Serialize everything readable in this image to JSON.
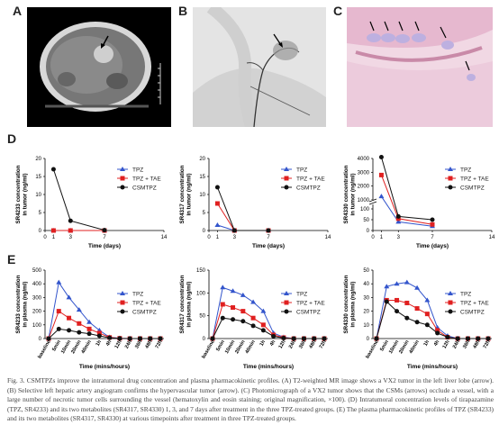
{
  "panels": {
    "A": "A",
    "B": "B",
    "C": "C",
    "D": "D",
    "E": "E"
  },
  "legend": {
    "d": [
      "TPZ",
      "TPZ + TAE",
      "CSMTPZ"
    ],
    "e": [
      "TPZ",
      "TPZ + TAE",
      "CSMTPZ"
    ]
  },
  "colors": {
    "tpz": "#3355cc",
    "tpz_tae": "#e02020",
    "csmtpz": "#111111"
  },
  "chart_data": [
    {
      "id": "D1",
      "type": "line",
      "ylabel": "SR4233 concentration in tumor (ng/ml)",
      "xlabel": "Time (days)",
      "x": [
        1,
        3,
        7
      ],
      "xticks": [
        0,
        1,
        3,
        7,
        14
      ],
      "ylim": [
        0,
        20
      ],
      "yticks": [
        0,
        5,
        10,
        15,
        20
      ],
      "series": [
        {
          "name": "TPZ",
          "values": [
            0,
            0,
            0
          ]
        },
        {
          "name": "TPZ + TAE",
          "values": [
            0,
            0,
            0
          ]
        },
        {
          "name": "CSMTPZ",
          "values": [
            17,
            2.7,
            0.1
          ]
        }
      ]
    },
    {
      "id": "D2",
      "type": "line",
      "ylabel": "SR4317 concentration in tumor (ng/ml)",
      "xlabel": "Time (days)",
      "x": [
        1,
        3,
        7
      ],
      "xticks": [
        0,
        1,
        3,
        7,
        14
      ],
      "ylim": [
        0,
        20
      ],
      "yticks": [
        0,
        5,
        10,
        15,
        20
      ],
      "series": [
        {
          "name": "TPZ",
          "values": [
            1.5,
            0,
            0
          ]
        },
        {
          "name": "TPZ + TAE",
          "values": [
            7.5,
            0,
            0
          ]
        },
        {
          "name": "CSMTPZ",
          "values": [
            12,
            0,
            0
          ]
        }
      ]
    },
    {
      "id": "D3",
      "type": "line",
      "ylabel": "SR4330 concentration in tumor (ng/ml)",
      "xlabel": "Time (days)",
      "x": [
        1,
        3,
        7
      ],
      "xticks": [
        0,
        1,
        3,
        7,
        14
      ],
      "yticks_upper": [
        1000,
        2000,
        3000,
        4000
      ],
      "yticks_lower": [
        0,
        50,
        100
      ],
      "series": [
        {
          "name": "TPZ",
          "values": [
            1250,
            40,
            20
          ]
        },
        {
          "name": "TPZ + TAE",
          "values": [
            2800,
            55,
            28
          ]
        },
        {
          "name": "CSMTPZ",
          "values": [
            4100,
            65,
            50
          ]
        }
      ]
    },
    {
      "id": "E1",
      "type": "line",
      "ylabel": "SR4233 concentration in plasma (ng/ml)",
      "xlabel": "Time (mins/hours)",
      "categories": [
        "baseline",
        "5min",
        "10min",
        "20min",
        "40min",
        "1h",
        "4h",
        "12h",
        "24h",
        "36h",
        "48h",
        "72h"
      ],
      "ylim": [
        0,
        500
      ],
      "yticks": [
        0,
        100,
        200,
        300,
        400,
        500
      ],
      "series": [
        {
          "name": "TPZ",
          "values": [
            0,
            410,
            300,
            210,
            120,
            60,
            10,
            2,
            0,
            0,
            0,
            0
          ]
        },
        {
          "name": "TPZ + TAE",
          "values": [
            0,
            200,
            150,
            110,
            70,
            40,
            8,
            2,
            0,
            0,
            0,
            0
          ]
        },
        {
          "name": "CSMTPZ",
          "values": [
            0,
            70,
            60,
            45,
            35,
            20,
            5,
            1,
            0,
            0,
            0,
            0
          ]
        }
      ]
    },
    {
      "id": "E2",
      "type": "line",
      "ylabel": "SR4317 concentration in plasma (ng/ml)",
      "xlabel": "Time (mins/hours)",
      "categories": [
        "baseline",
        "5min",
        "10min",
        "20min",
        "40min",
        "1h",
        "4h",
        "12h",
        "24h",
        "36h",
        "48h",
        "72h"
      ],
      "ylim": [
        0,
        150
      ],
      "yticks": [
        0,
        50,
        100,
        150
      ],
      "series": [
        {
          "name": "TPZ",
          "values": [
            0,
            112,
            104,
            95,
            80,
            60,
            12,
            3,
            0,
            0,
            0,
            0
          ]
        },
        {
          "name": "TPZ + TAE",
          "values": [
            0,
            75,
            68,
            60,
            45,
            30,
            8,
            2,
            0,
            0,
            0,
            0
          ]
        },
        {
          "name": "CSMTPZ",
          "values": [
            0,
            45,
            42,
            38,
            28,
            18,
            5,
            1,
            0,
            0,
            0,
            0
          ]
        }
      ]
    },
    {
      "id": "E3",
      "type": "line",
      "ylabel": "SR4330 concentration in plasma (ng/ml)",
      "xlabel": "Time (mins/hours)",
      "categories": [
        "baseline",
        "5min",
        "10min",
        "20min",
        "40min",
        "1h",
        "4h",
        "12h",
        "24h",
        "36h",
        "48h",
        "72h"
      ],
      "ylim": [
        0,
        50
      ],
      "yticks": [
        0,
        10,
        20,
        30,
        40,
        50
      ],
      "series": [
        {
          "name": "TPZ",
          "values": [
            0,
            38,
            40,
            41,
            37,
            28,
            8,
            2,
            0,
            0,
            0,
            0
          ]
        },
        {
          "name": "TPZ + TAE",
          "values": [
            0,
            28,
            28,
            26,
            22,
            18,
            6,
            1,
            0,
            0,
            0,
            0
          ]
        },
        {
          "name": "CSMTPZ",
          "values": [
            0,
            27,
            20,
            15,
            12,
            10,
            4,
            1,
            0,
            0,
            0,
            0
          ]
        }
      ]
    }
  ],
  "caption": "Fig. 3. CSMTPZs improve the intratumoral drug concentration and plasma pharmacokinetic profiles. (A) T2-weighted MR image shows a VX2 tumor in the left liver lobe (arrow). (B) Selective left hepatic artery angiogram confirms the hypervascular tumor (arrow). (C) Photomicrograph of a VX2 tumor shows that the CSMs (arrows) occlude a vessel, with a large number of necrotic tumor cells surrounding the vessel (hematoxylin and eosin staining; original magnification, ×100). (D) Intratumoral concentration levels of tirapazamine (TPZ, SR4233) and its two metabolites (SR4317, SR4330) 1, 3, and 7 days after treatment in the three TPZ-treated groups. (E) The plasma pharmacokinetic profiles of TPZ (SR4233) and its two metabolites (SR4317, SR4330) at various timepoints after treatment in three TPZ-treated groups."
}
